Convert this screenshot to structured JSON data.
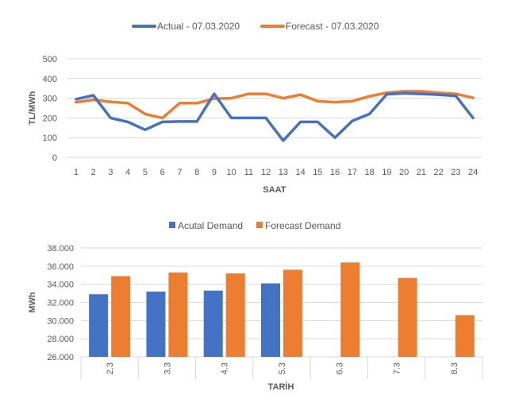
{
  "chart_data": [
    {
      "type": "line",
      "title": "",
      "xlabel": "SAAT",
      "ylabel": "TL/MWh",
      "ylim": [
        0,
        500
      ],
      "yticks": [
        0,
        100,
        200,
        300,
        400,
        500
      ],
      "x": [
        "1",
        "2",
        "3",
        "4",
        "5",
        "6",
        "7",
        "8",
        "9",
        "10",
        "11",
        "12",
        "13",
        "14",
        "15",
        "16",
        "17",
        "18",
        "19",
        "20",
        "21",
        "22",
        "23",
        "24"
      ],
      "series": [
        {
          "name": "Actual - 07.03.2020",
          "color": "#4472c4",
          "values": [
            295,
            315,
            200,
            180,
            140,
            180,
            182,
            182,
            322,
            200,
            200,
            200,
            85,
            180,
            180,
            100,
            185,
            220,
            320,
            325,
            322,
            318,
            312,
            200
          ]
        },
        {
          "name": "Forecast - 07.03.2020",
          "color": "#ed7d31",
          "values": [
            280,
            292,
            282,
            275,
            220,
            200,
            275,
            275,
            298,
            300,
            322,
            322,
            300,
            318,
            285,
            280,
            285,
            310,
            328,
            335,
            335,
            328,
            322,
            302
          ]
        }
      ]
    },
    {
      "type": "bar",
      "title": "",
      "xlabel": "TARİH",
      "ylabel": "MWh",
      "ylim": [
        26000,
        38000
      ],
      "yticks": [
        "26.000",
        "28.000",
        "30.000",
        "32.000",
        "34.000",
        "36.000",
        "38.000"
      ],
      "categories": [
        "2.3",
        "3.3",
        "4.3",
        "5.3",
        "6.3",
        "7.3",
        "8.3"
      ],
      "series": [
        {
          "name": "Acutal Demand",
          "color": "#4472c4",
          "values": [
            32900,
            33200,
            33300,
            34100,
            null,
            null,
            null
          ]
        },
        {
          "name": "Forecast Demand",
          "color": "#ed7d31",
          "values": [
            34900,
            35300,
            35200,
            35600,
            36400,
            34700,
            30600
          ]
        }
      ]
    }
  ]
}
